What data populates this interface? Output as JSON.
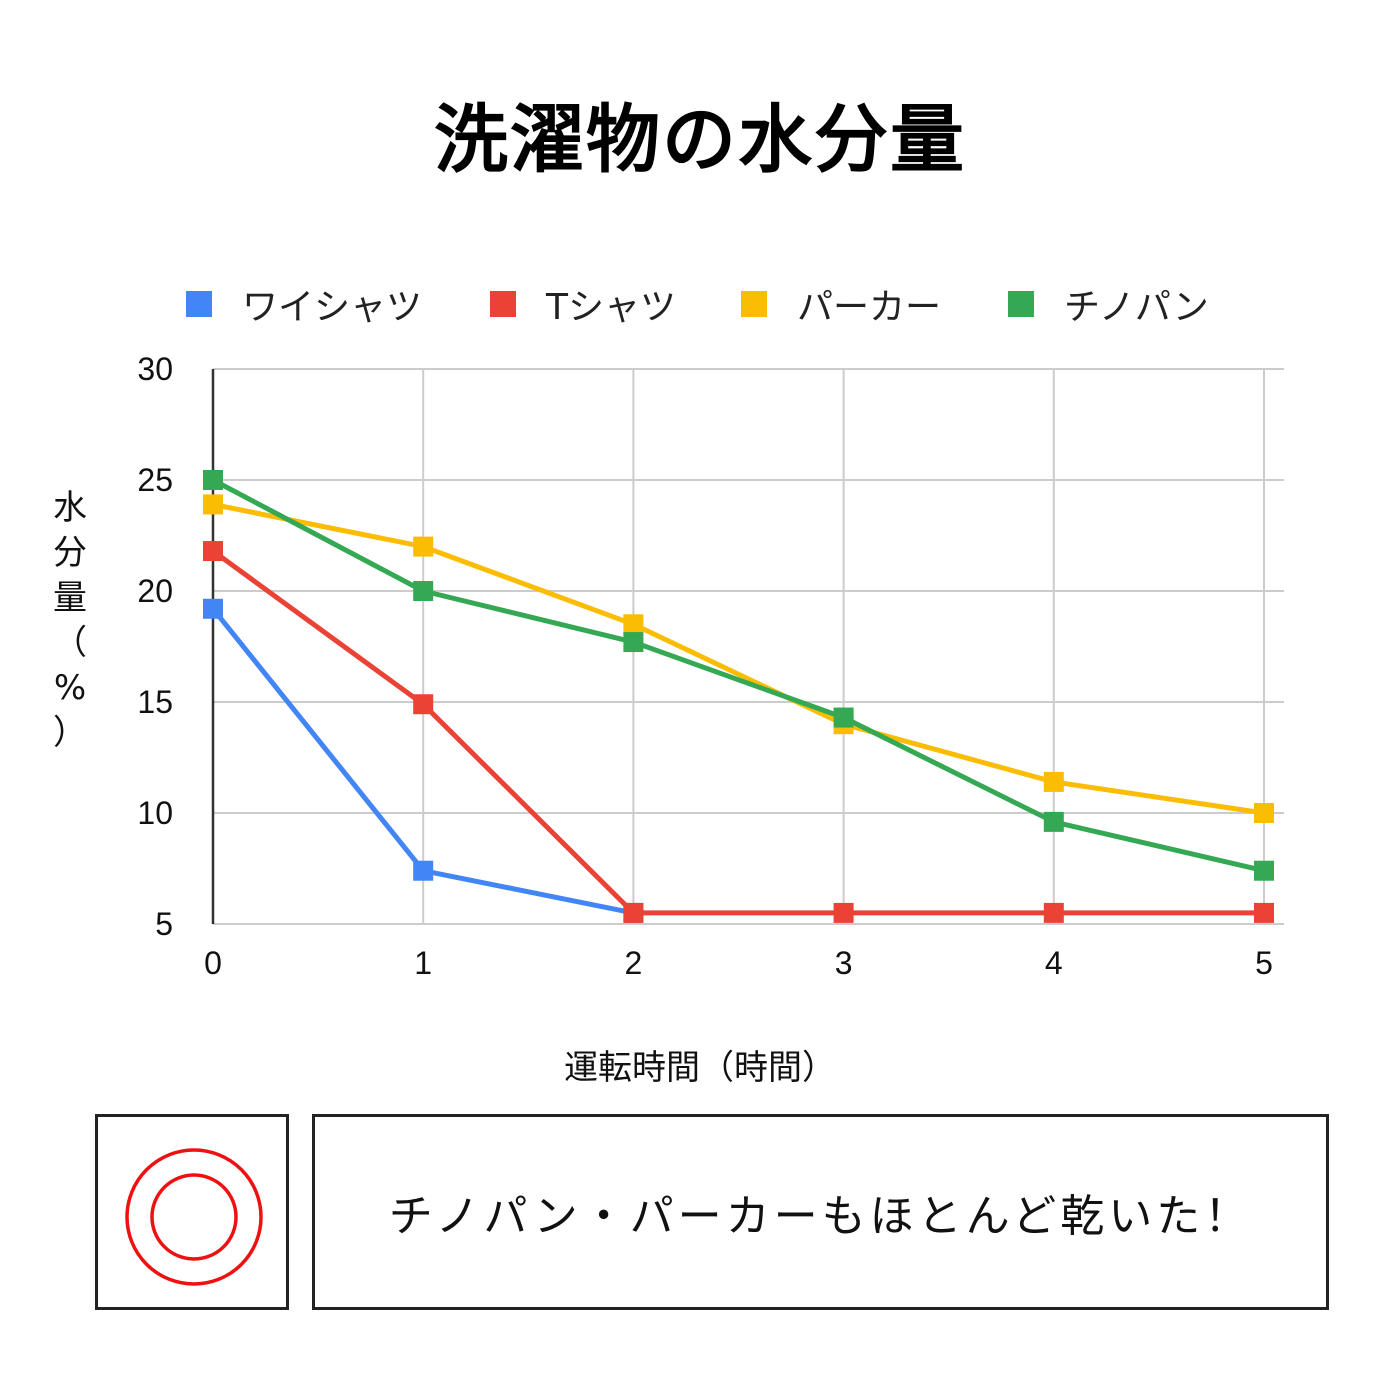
{
  "header": {
    "title": "洗濯物の水分量"
  },
  "chart_data": {
    "type": "line",
    "title": "洗濯物の水分量",
    "xlabel": "運転時間（時間）",
    "ylabel": "水分量（%）",
    "x": [
      0,
      1,
      2,
      3,
      4,
      5
    ],
    "xlim": [
      0,
      5
    ],
    "ylim": [
      5,
      30
    ],
    "yticks": [
      5,
      10,
      15,
      20,
      25,
      30
    ],
    "grid": true,
    "legend": "top",
    "series": [
      {
        "name": "ワイシャツ",
        "color": "#4285f4",
        "values": [
          19.2,
          7.4,
          5.5,
          null,
          null,
          null
        ]
      },
      {
        "name": "Tシャツ",
        "color": "#ea4335",
        "values": [
          21.8,
          14.9,
          5.5,
          5.5,
          5.5,
          5.5
        ]
      },
      {
        "name": "パーカー",
        "color": "#fbbc04",
        "values": [
          23.9,
          22.0,
          18.5,
          14.0,
          11.4,
          10.0
        ]
      },
      {
        "name": "チノパン",
        "color": "#34a853",
        "values": [
          25.0,
          20.0,
          17.7,
          14.3,
          9.6,
          7.4
        ]
      }
    ]
  },
  "result": {
    "icon": "double-circle-icon",
    "icon_color": "#ee1111",
    "message": "チノパン・パーカーもほとんど乾いた！"
  }
}
